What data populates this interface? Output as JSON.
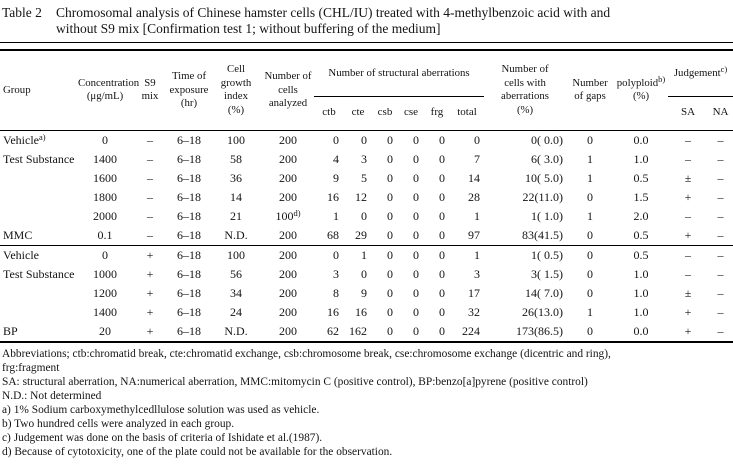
{
  "caption": {
    "label": "Table 2",
    "text": "Chromosomal analysis of Chinese hamster cells (CHL/IU) treated with 4-methylbenzoic acid with and\nwithout S9 mix [Confirmation test 1; without buffering of the medium]"
  },
  "table": {
    "headers": {
      "group": "Group",
      "concentration": "Concentration\n(μg/mL)",
      "s9_mix": "S9\nmix",
      "time_of_exposure": "Time of\nexposure\n(hr)",
      "cell_growth_index": "Cell\ngrowth\nindex\n(%)",
      "cells_analyzed": "Number of\ncells\nanalyzed",
      "structural_aberrations": "Number of structural aberrations",
      "ctb": "ctb",
      "cte": "cte",
      "csb": "csb",
      "cse": "cse",
      "frg": "frg",
      "total": "total",
      "cells_with_aberrations": "Number of\ncells with\naberrations\n(%)",
      "gaps": "Number\nof gaps",
      "polyploid": "polyploid",
      "polyploid_sup": "b)",
      "polyploid_unit": "(%)",
      "judgement": "Judgement",
      "judgement_sup": "c)",
      "sa": "SA",
      "na": "NA"
    },
    "column_keys": [
      "group",
      "concentration",
      "s9-mix",
      "time-of-exposure",
      "cell-growth-index",
      "cells-analyzed",
      "ctb",
      "cte",
      "csb",
      "cse",
      "frg",
      "total",
      "cells-with-aberrations",
      "gaps",
      "polyploid",
      "judgement-sa",
      "judgement-na"
    ],
    "blocks": [
      {
        "rows": [
          [
            "Vehicle^a)",
            "0",
            "–",
            "6–18",
            "100",
            "200",
            "0",
            "0",
            "0",
            "0",
            "0",
            "0",
            "0( 0.0)",
            "0",
            "0.0",
            "–",
            "–"
          ],
          [
            "Test Substance",
            "1400",
            "–",
            "6–18",
            "58",
            "200",
            "4",
            "3",
            "0",
            "0",
            "0",
            "7",
            "6( 3.0)",
            "1",
            "1.0",
            "–",
            "–"
          ],
          [
            "",
            "1600",
            "–",
            "6–18",
            "36",
            "200",
            "9",
            "5",
            "0",
            "0",
            "0",
            "14",
            "10( 5.0)",
            "1",
            "0.5",
            "±",
            "–"
          ],
          [
            "",
            "1800",
            "–",
            "6–18",
            "14",
            "200",
            "16",
            "12",
            "0",
            "0",
            "0",
            "28",
            "22(11.0)",
            "0",
            "1.5",
            "+",
            "–"
          ],
          [
            "",
            "2000",
            "–",
            "6–18",
            "21",
            "100^d)",
            "1",
            "0",
            "0",
            "0",
            "0",
            "1",
            "1( 1.0)",
            "1",
            "2.0",
            "–",
            "–"
          ],
          [
            "MMC",
            "0.1",
            "–",
            "6–18",
            "N.D.",
            "200",
            "68",
            "29",
            "0",
            "0",
            "0",
            "97",
            "83(41.5)",
            "0",
            "0.5",
            "+",
            "–"
          ]
        ]
      },
      {
        "rows": [
          [
            "Vehicle",
            "0",
            "+",
            "6–18",
            "100",
            "200",
            "0",
            "1",
            "0",
            "0",
            "0",
            "1",
            "1( 0.5)",
            "0",
            "0.5",
            "–",
            "–"
          ],
          [
            "Test Substance",
            "1000",
            "+",
            "6–18",
            "56",
            "200",
            "3",
            "0",
            "0",
            "0",
            "0",
            "3",
            "3( 1.5)",
            "0",
            "1.0",
            "–",
            "–"
          ],
          [
            "",
            "1200",
            "+",
            "6–18",
            "34",
            "200",
            "8",
            "9",
            "0",
            "0",
            "0",
            "17",
            "14( 7.0)",
            "0",
            "1.0",
            "±",
            "–"
          ],
          [
            "",
            "1400",
            "+",
            "6–18",
            "24",
            "200",
            "16",
            "16",
            "0",
            "0",
            "0",
            "32",
            "26(13.0)",
            "1",
            "1.0",
            "+",
            "–"
          ],
          [
            "BP",
            "20",
            "+",
            "6–18",
            "N.D.",
            "200",
            "62",
            "162",
            "0",
            "0",
            "0",
            "224",
            "173(86.5)",
            "0",
            "0.0",
            "+",
            "–"
          ]
        ]
      }
    ]
  },
  "footnotes": [
    "Abbreviations; ctb:chromatid break, cte:chromatid exchange, csb:chromosome break, cse:chromosome exchange (dicentric and ring),",
    "frg:fragment",
    "SA: structural aberration, NA:numerical aberration, MMC:mitomycin C (positive control), BP:benzo[a]pyrene (positive control)",
    "N.D.: Not determined",
    "a) 1% Sodium carboxymethylcedllulose solution was used as vehicle.",
    "b) Two hundred cells were analyzed in each group.",
    "c) Judgement was done on the basis of criteria of Ishidate et al.(1987).",
    "d) Because of cytotoxicity, one of the plate could not be available for the observation."
  ]
}
